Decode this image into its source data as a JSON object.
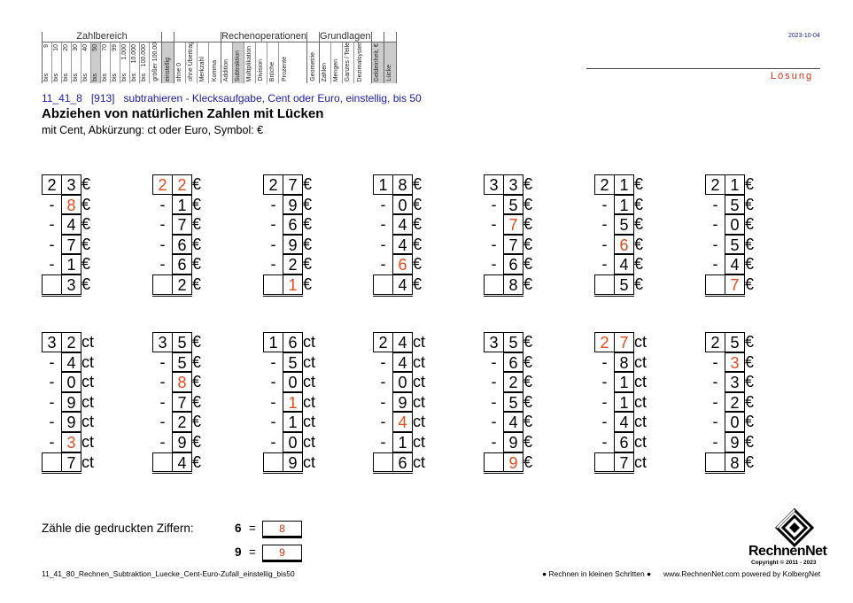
{
  "header": {
    "groups": [
      {
        "title": "Zahlbereich",
        "top": [
          "9",
          "10",
          "20",
          "30",
          "40",
          "50",
          "70",
          "99",
          "1.000",
          "10.000",
          "100.000"
        ],
        "bottom": "bis",
        "extra": [
          "größer 100.000"
        ],
        "shaded": [
          "50"
        ]
      },
      {
        "title": "",
        "labels": [
          "einstellig"
        ],
        "shaded": true
      },
      {
        "title": "",
        "labels": [
          "ohne 0",
          "ohne Übertrag",
          "Merkzahl",
          "Komma"
        ]
      },
      {
        "title": "Rechenoperationen",
        "labels": [
          "Addition",
          "Subtraktion",
          "Multiplikation",
          "Division",
          "Brüche",
          "Prozente"
        ],
        "shaded": [
          "Subtraktion"
        ]
      },
      {
        "title": "",
        "labels": [
          "Geometrie"
        ]
      },
      {
        "title": "Grundlagen",
        "labels": [
          "Zahlen",
          "Mengen",
          "Ganzes / Teile",
          "Dezimalsystem"
        ]
      },
      {
        "title": "",
        "labels": [
          "Geldeinheit, € / ct"
        ],
        "shaded": true
      },
      {
        "title": "",
        "labels": [
          "Lücke"
        ],
        "shaded": true
      }
    ]
  },
  "date": "2023-10-04",
  "solution_label": "Lösung",
  "code_line": "11_41_8   [913]   subtrahieren - Klecksaufgabe, Cent oder Euro, einstellig, bis 50",
  "title": "Abziehen von natürlichen Zahlen mit Lücken",
  "subtitle": "mit Cent, Abkürzung: ct oder Euro, Symbol: €",
  "exercises": [
    {
      "unit": "€",
      "top": [
        "2",
        "3"
      ],
      "top_red": [
        false,
        false
      ],
      "subs": [
        "8",
        "4",
        "7",
        "1"
      ],
      "subs_red": [
        true,
        false,
        false,
        false
      ],
      "result": "3",
      "result_red": false
    },
    {
      "unit": "€",
      "top": [
        "2",
        "2"
      ],
      "top_red": [
        true,
        true
      ],
      "subs": [
        "1",
        "7",
        "6",
        "6"
      ],
      "subs_red": [
        false,
        false,
        false,
        false
      ],
      "result": "2",
      "result_red": false
    },
    {
      "unit": "€",
      "top": [
        "2",
        "7"
      ],
      "top_red": [
        false,
        false
      ],
      "subs": [
        "9",
        "6",
        "9",
        "2"
      ],
      "subs_red": [
        false,
        false,
        false,
        false
      ],
      "result": "1",
      "result_red": true
    },
    {
      "unit": "€",
      "top": [
        "1",
        "8"
      ],
      "top_red": [
        false,
        false
      ],
      "subs": [
        "0",
        "4",
        "4",
        "6"
      ],
      "subs_red": [
        false,
        false,
        false,
        true
      ],
      "result": "4",
      "result_red": false
    },
    {
      "unit": "€",
      "top": [
        "3",
        "3"
      ],
      "top_red": [
        false,
        false
      ],
      "subs": [
        "5",
        "7",
        "7",
        "6"
      ],
      "subs_red": [
        false,
        true,
        false,
        false
      ],
      "result": "8",
      "result_red": false
    },
    {
      "unit": "€",
      "top": [
        "2",
        "1"
      ],
      "top_red": [
        false,
        false
      ],
      "subs": [
        "1",
        "5",
        "6",
        "4"
      ],
      "subs_red": [
        false,
        false,
        true,
        false
      ],
      "result": "5",
      "result_red": false
    },
    {
      "unit": "€",
      "top": [
        "2",
        "1"
      ],
      "top_red": [
        false,
        false
      ],
      "subs": [
        "5",
        "0",
        "5",
        "4"
      ],
      "subs_red": [
        false,
        false,
        false,
        false
      ],
      "result": "7",
      "result_red": true
    },
    {
      "unit": "ct",
      "top": [
        "3",
        "2"
      ],
      "top_red": [
        false,
        false
      ],
      "subs": [
        "4",
        "0",
        "9",
        "9",
        "3"
      ],
      "subs_red": [
        false,
        false,
        false,
        false,
        true
      ],
      "result": "7",
      "result_red": false
    },
    {
      "unit": "€",
      "top": [
        "3",
        "5"
      ],
      "top_red": [
        false,
        false
      ],
      "subs": [
        "5",
        "8",
        "7",
        "2",
        "9"
      ],
      "subs_red": [
        false,
        true,
        false,
        false,
        false
      ],
      "result": "4",
      "result_red": false
    },
    {
      "unit": "ct",
      "top": [
        "1",
        "6"
      ],
      "top_red": [
        false,
        false
      ],
      "subs": [
        "5",
        "0",
        "1",
        "1",
        "0"
      ],
      "subs_red": [
        false,
        false,
        true,
        false,
        false
      ],
      "result": "9",
      "result_red": false
    },
    {
      "unit": "ct",
      "top": [
        "2",
        "4"
      ],
      "top_red": [
        false,
        false
      ],
      "subs": [
        "4",
        "0",
        "9",
        "4",
        "1"
      ],
      "subs_red": [
        false,
        false,
        false,
        true,
        false
      ],
      "result": "6",
      "result_red": false
    },
    {
      "unit": "€",
      "top": [
        "3",
        "5"
      ],
      "top_red": [
        false,
        false
      ],
      "subs": [
        "6",
        "2",
        "5",
        "4",
        "9"
      ],
      "subs_red": [
        false,
        false,
        false,
        false,
        false
      ],
      "result": "9",
      "result_red": true
    },
    {
      "unit": "ct",
      "top": [
        "2",
        "7"
      ],
      "top_red": [
        true,
        true
      ],
      "subs": [
        "8",
        "1",
        "1",
        "4",
        "6"
      ],
      "subs_red": [
        false,
        false,
        false,
        false,
        false
      ],
      "result": "7",
      "result_red": false
    },
    {
      "unit": "€",
      "top": [
        "2",
        "5"
      ],
      "top_red": [
        false,
        false
      ],
      "subs": [
        "3",
        "3",
        "2",
        "0",
        "9"
      ],
      "subs_red": [
        true,
        false,
        false,
        false,
        false
      ],
      "result": "8",
      "result_red": false
    }
  ],
  "count": {
    "label": "Zähle die gedruckten Ziffern:",
    "items": [
      {
        "digit": "6",
        "eq": "=",
        "value": "8"
      },
      {
        "digit": "9",
        "eq": "=",
        "value": "9"
      }
    ]
  },
  "footer": {
    "left": "11_41_80_Rechnen_Subtraktion_Luecke_Cent-Euro-Zufall_einstellig_bis50",
    "mid": "● Rechnen in kleinen Schritten ●",
    "right": "www.RechnenNet.com powered by KolbergNet"
  },
  "logo": {
    "name": "RechnenNet",
    "copyright": "Copyright © 2011 - 2023"
  }
}
